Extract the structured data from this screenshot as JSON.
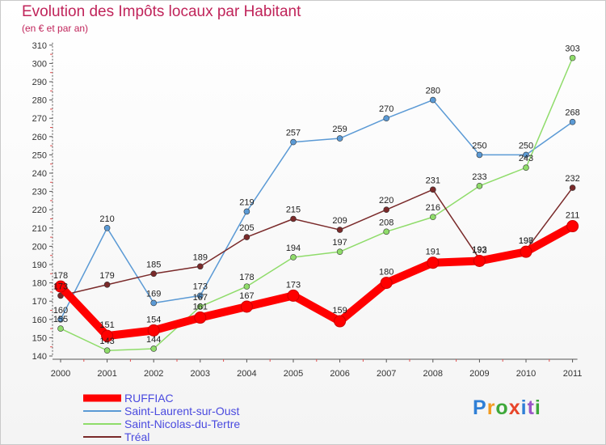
{
  "title": "Evolution des Impôts locaux par Habitant",
  "subtitle": "(en € et par an)",
  "brand": "Proxiti",
  "chart_data": {
    "type": "line",
    "title": "Evolution des Impôts locaux par Habitant",
    "subtitle": "(en € et par an)",
    "xlabel": "",
    "ylabel": "",
    "ylim": [
      140,
      310
    ],
    "ytick_step": 10,
    "categories": [
      "2000",
      "2001",
      "2002",
      "2003",
      "2004",
      "2005",
      "2006",
      "2007",
      "2008",
      "2009",
      "2010",
      "2011"
    ],
    "series": [
      {
        "name": "RUFFIAC",
        "color": "#ff0000",
        "values": [
          178,
          151,
          154,
          161,
          167,
          173,
          159,
          180,
          191,
          192,
          197,
          211
        ]
      },
      {
        "name": "Saint-Laurent-sur-Oust",
        "color": "#5b9ad5",
        "values": [
          160,
          210,
          169,
          173,
          219,
          257,
          259,
          270,
          280,
          250,
          250,
          268
        ]
      },
      {
        "name": "Saint-Nicolas-du-Tertre",
        "color": "#8fdc6a",
        "values": [
          155,
          143,
          144,
          167,
          178,
          194,
          197,
          208,
          216,
          233,
          243,
          303
        ]
      },
      {
        "name": "Tréal",
        "color": "#7a2a2a",
        "values": [
          173,
          179,
          185,
          189,
          205,
          215,
          209,
          220,
          231,
          193,
          198,
          232
        ]
      }
    ],
    "legend": "bottom-left"
  }
}
